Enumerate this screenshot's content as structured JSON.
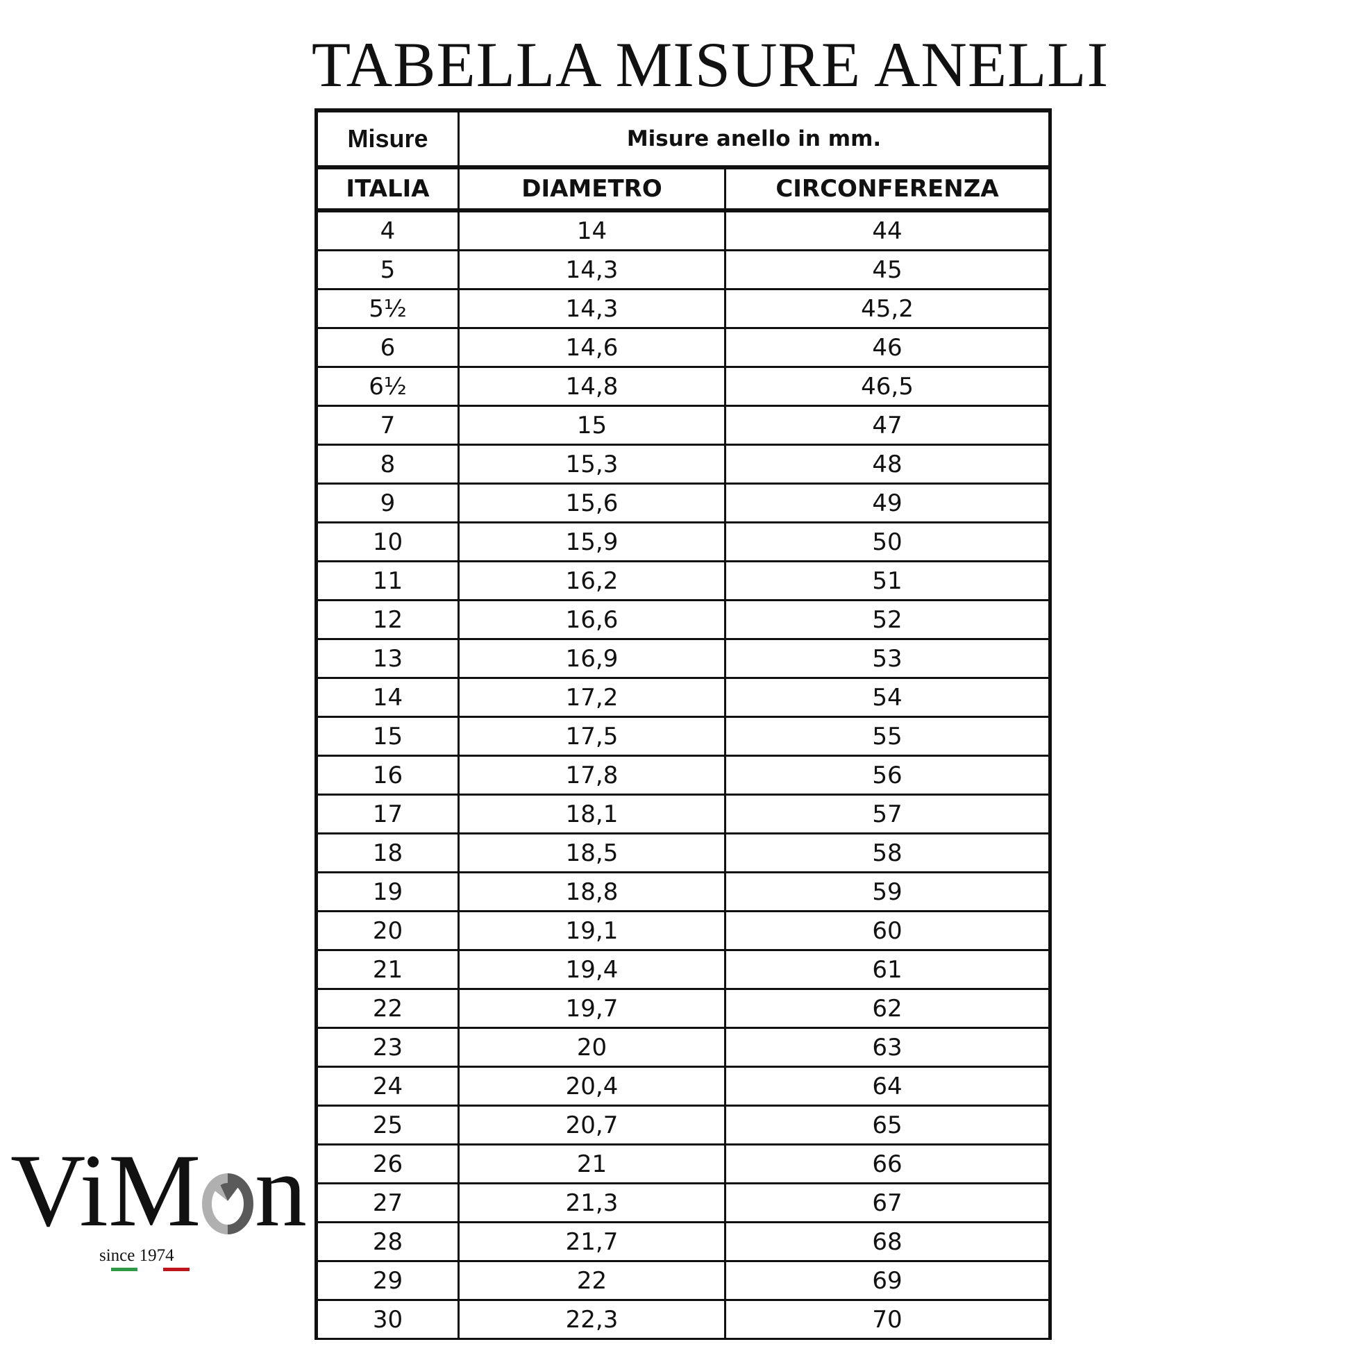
{
  "title": "TABELLA MISURE ANELLI",
  "table": {
    "header_top": {
      "col1": "Misure",
      "col2": "Misure anello in mm."
    },
    "columns": [
      "ITALIA",
      "DIAMETRO",
      "CIRCONFERENZA"
    ],
    "rows": [
      [
        "4",
        "14",
        "44"
      ],
      [
        "5",
        "14,3",
        "45"
      ],
      [
        "5½",
        "14,3",
        "45,2"
      ],
      [
        "6",
        "14,6",
        "46"
      ],
      [
        "6½",
        "14,8",
        "46,5"
      ],
      [
        "7",
        "15",
        "47"
      ],
      [
        "8",
        "15,3",
        "48"
      ],
      [
        "9",
        "15,6",
        "49"
      ],
      [
        "10",
        "15,9",
        "50"
      ],
      [
        "11",
        "16,2",
        "51"
      ],
      [
        "12",
        "16,6",
        "52"
      ],
      [
        "13",
        "16,9",
        "53"
      ],
      [
        "14",
        "17,2",
        "54"
      ],
      [
        "15",
        "17,5",
        "55"
      ],
      [
        "16",
        "17,8",
        "56"
      ],
      [
        "17",
        "18,1",
        "57"
      ],
      [
        "18",
        "18,5",
        "58"
      ],
      [
        "19",
        "18,8",
        "59"
      ],
      [
        "20",
        "19,1",
        "60"
      ],
      [
        "21",
        "19,4",
        "61"
      ],
      [
        "22",
        "19,7",
        "62"
      ],
      [
        "23",
        "20",
        "63"
      ],
      [
        "24",
        "20,4",
        "64"
      ],
      [
        "25",
        "20,7",
        "65"
      ],
      [
        "26",
        "21",
        "66"
      ],
      [
        "27",
        "21,3",
        "67"
      ],
      [
        "28",
        "21,7",
        "68"
      ],
      [
        "29",
        "22",
        "69"
      ],
      [
        "30",
        "22,3",
        "70"
      ]
    ]
  },
  "logo": {
    "brand": "ViMon",
    "tagline": "since 1974",
    "colors": {
      "green": "#2e9a48",
      "red": "#c0141c",
      "ring_light": "#b0b0b0",
      "ring_dark": "#5a5a5a"
    }
  }
}
